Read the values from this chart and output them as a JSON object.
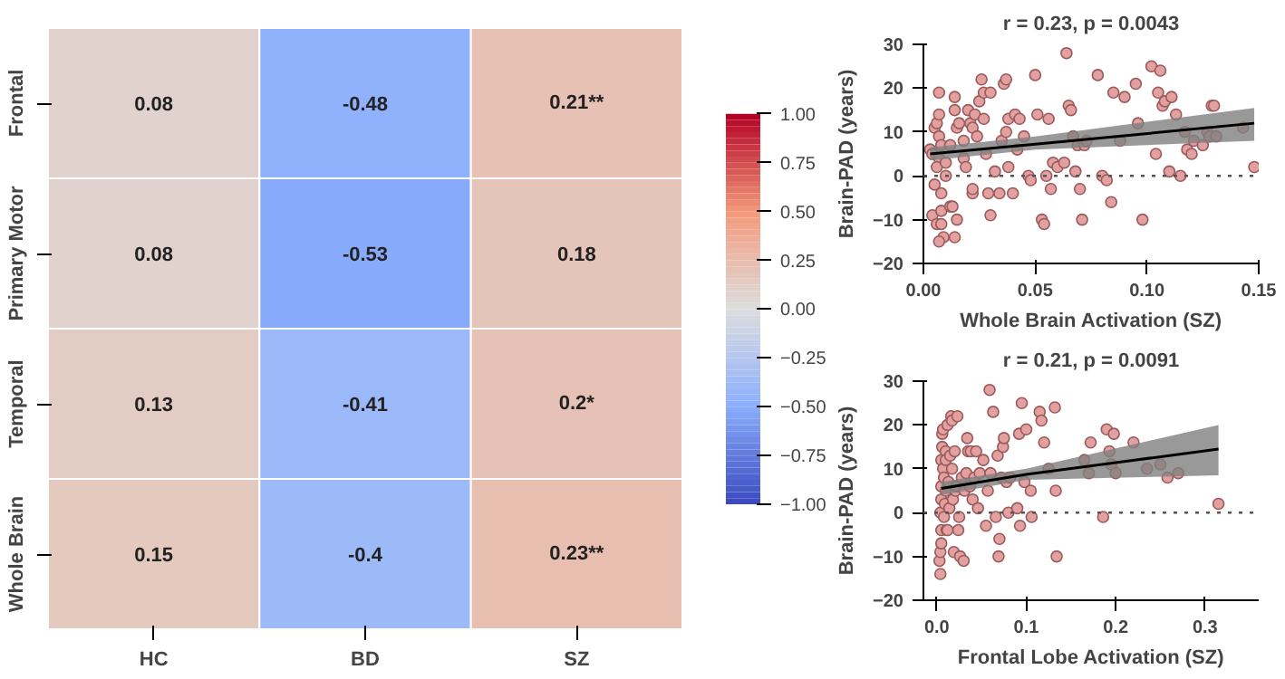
{
  "chart_data": [
    {
      "type": "heatmap",
      "categories": [
        "HC",
        "BD",
        "SZ"
      ],
      "y_categories": [
        "Frontal",
        "Primary Motor",
        "Temporal",
        "Whole Brain"
      ],
      "cells": [
        [
          0.08,
          -0.48,
          0.21
        ],
        [
          0.08,
          -0.53,
          0.18
        ],
        [
          0.13,
          -0.41,
          0.2
        ],
        [
          0.15,
          -0.4,
          0.23
        ]
      ],
      "cell_labels": [
        [
          "0.08",
          "-0.48",
          "0.21**"
        ],
        [
          "0.08",
          "-0.53",
          "0.18"
        ],
        [
          "0.13",
          "-0.41",
          "0.2*"
        ],
        [
          "0.15",
          "-0.4",
          "0.23**"
        ]
      ],
      "clim": [
        -1,
        1
      ],
      "cticks": [
        {
          "value": 1,
          "label": "1.00"
        },
        {
          "value": 0.75,
          "label": "0.75"
        },
        {
          "value": 0.5,
          "label": "0.50"
        },
        {
          "value": 0.25,
          "label": "0.25"
        },
        {
          "value": 0,
          "label": "0.00"
        },
        {
          "value": -0.25,
          "label": "−0.25"
        },
        {
          "value": -0.5,
          "label": "−0.50"
        },
        {
          "value": -0.75,
          "label": "−0.75"
        },
        {
          "value": -1,
          "label": "−1.00"
        }
      ]
    },
    {
      "type": "scatter",
      "title": "r = 0.23, p = 0.0043",
      "xlabel": "Whole Brain Activation (SZ)",
      "ylabel": "Brain-PAD (years)",
      "xlim": [
        0,
        0.15
      ],
      "ylim": [
        -20,
        30
      ],
      "xticks": [
        {
          "value": 0,
          "label": "0.00"
        },
        {
          "value": 0.05,
          "label": "0.05"
        },
        {
          "value": 0.1,
          "label": "0.10"
        },
        {
          "value": 0.15,
          "label": "0.15"
        }
      ],
      "yticks": [
        -20,
        -10,
        0,
        10,
        20,
        30
      ],
      "grid": false,
      "ref_lines": [
        {
          "axis": "y",
          "value": 0,
          "line_style": "dotted",
          "color": "#555555"
        }
      ],
      "series": [
        {
          "type": "scatter",
          "marker": "circle",
          "color": "#e3a0a0",
          "x": [
            0.003,
            0.004,
            0.005,
            0.005,
            0.004,
            0.006,
            0.007,
            0.006,
            0.007,
            0.007,
            0.008,
            0.007,
            0.008,
            0.008,
            0.009,
            0.007,
            0.008,
            0.006,
            0.01,
            0.01,
            0.012,
            0.013,
            0.014,
            0.015,
            0.012,
            0.014,
            0.014,
            0.015,
            0.016,
            0.018,
            0.018,
            0.019,
            0.02,
            0.021,
            0.022,
            0.022,
            0.022,
            0.023,
            0.024,
            0.025,
            0.026,
            0.027,
            0.027,
            0.028,
            0.029,
            0.03,
            0.03,
            0.032,
            0.034,
            0.035,
            0.036,
            0.037,
            0.037,
            0.038,
            0.038,
            0.04,
            0.041,
            0.042,
            0.043,
            0.045,
            0.047,
            0.048,
            0.05,
            0.051,
            0.053,
            0.054,
            0.055,
            0.056,
            0.057,
            0.058,
            0.06,
            0.063,
            0.064,
            0.065,
            0.066,
            0.067,
            0.068,
            0.069,
            0.07,
            0.071,
            0.072,
            0.073,
            0.078,
            0.08,
            0.082,
            0.084,
            0.085,
            0.088,
            0.09,
            0.095,
            0.096,
            0.098,
            0.102,
            0.104,
            0.105,
            0.106,
            0.107,
            0.108,
            0.11,
            0.111,
            0.113,
            0.115,
            0.117,
            0.118,
            0.12,
            0.121,
            0.125,
            0.127,
            0.128,
            0.129,
            0.13,
            0.131,
            0.143,
            0.148
          ],
          "values": [
            6,
            5,
            11,
            -2,
            -9,
            -11,
            19,
            12,
            14,
            9,
            7,
            4,
            -4,
            -8,
            -14,
            -15,
            -11,
            2,
            0,
            3,
            -7,
            -7,
            -14,
            -10,
            7,
            15,
            18,
            11,
            12,
            8,
            4,
            2,
            15,
            12,
            11,
            -4,
            -3,
            14,
            9,
            17,
            22,
            19,
            13,
            5,
            -4,
            -9,
            19,
            1,
            -4,
            8,
            21,
            22,
            10,
            2,
            13,
            -4,
            14,
            6,
            13,
            9,
            0,
            -1,
            23,
            14,
            -10,
            -11,
            0,
            13,
            -3,
            3,
            2,
            3,
            28,
            16,
            15,
            9,
            1,
            7,
            -3,
            -10,
            7,
            8,
            23,
            0,
            -1,
            -6,
            19,
            8,
            18,
            21,
            12,
            -10,
            25,
            5,
            19,
            24,
            16,
            17,
            1,
            18,
            14,
            0,
            10,
            6,
            5,
            8,
            7,
            10,
            9,
            16,
            16,
            9,
            11,
            2
          ]
        },
        {
          "type": "line",
          "color": "#000000",
          "x": [
            0.003,
            0.05,
            0.148
          ],
          "values": [
            5,
            7.2,
            12
          ],
          "lower": [
            3.5,
            6,
            8
          ],
          "upper": [
            6.5,
            9,
            15.5
          ]
        }
      ]
    },
    {
      "type": "scatter",
      "title": "r = 0.21, p = 0.0091",
      "xlabel": "Frontal Lobe Activation (SZ)",
      "ylabel": "Brain-PAD (years)",
      "xlim": [
        -0.015,
        0.36
      ],
      "ylim": [
        -20,
        30
      ],
      "xticks": [
        {
          "value": 0,
          "label": "0.0"
        },
        {
          "value": 0.1,
          "label": "0.1"
        },
        {
          "value": 0.2,
          "label": "0.2"
        },
        {
          "value": 0.3,
          "label": "0.3"
        }
      ],
      "yticks": [
        -20,
        -10,
        0,
        10,
        20,
        30
      ],
      "grid": false,
      "ref_lines": [
        {
          "axis": "y",
          "value": 0,
          "line_style": "dotted",
          "color": "#555555"
        }
      ],
      "series": [
        {
          "type": "scatter",
          "marker": "circle",
          "color": "#e3a0a0",
          "x": [
            0.003,
            0.004,
            0.004,
            0.005,
            0.005,
            0.004,
            0.005,
            0.005,
            0.005,
            0.006,
            0.006,
            0.007,
            0.007,
            0.008,
            0.008,
            0.009,
            0.01,
            0.01,
            0.01,
            0.011,
            0.012,
            0.012,
            0.013,
            0.014,
            0.015,
            0.016,
            0.017,
            0.017,
            0.018,
            0.019,
            0.02,
            0.021,
            0.022,
            0.023,
            0.024,
            0.025,
            0.026,
            0.028,
            0.03,
            0.031,
            0.033,
            0.034,
            0.035,
            0.037,
            0.038,
            0.04,
            0.042,
            0.044,
            0.046,
            0.048,
            0.052,
            0.055,
            0.057,
            0.059,
            0.06,
            0.063,
            0.066,
            0.068,
            0.069,
            0.07,
            0.072,
            0.074,
            0.075,
            0.078,
            0.08,
            0.082,
            0.09,
            0.092,
            0.093,
            0.095,
            0.098,
            0.1,
            0.105,
            0.106,
            0.115,
            0.117,
            0.12,
            0.125,
            0.132,
            0.133,
            0.134,
            0.165,
            0.17,
            0.172,
            0.186,
            0.19,
            0.193,
            0.195,
            0.198,
            0.2,
            0.22,
            0.235,
            0.25,
            0.258,
            0.27,
            0.315
          ],
          "values": [
            -11,
            -14,
            -9,
            -7,
            -4,
            0,
            3,
            6,
            12,
            15,
            18,
            19,
            10,
            8,
            -1,
            2,
            14,
            12,
            5,
            -4,
            20,
            -4,
            7,
            1,
            13,
            22,
            21,
            10,
            3,
            -9,
            14,
            5,
            6,
            22,
            -4,
            -1,
            -10,
            8,
            -11,
            5,
            9,
            17,
            14,
            6,
            14,
            3,
            8,
            14,
            1,
            9,
            12,
            -3,
            5,
            28,
            9,
            23,
            -1,
            13,
            -10,
            -6,
            8,
            15,
            17,
            7,
            0,
            8,
            1,
            18,
            -3,
            25,
            7,
            19,
            5,
            -1,
            23,
            21,
            16,
            10,
            24,
            5,
            -10,
            12,
            9,
            16,
            -1,
            19,
            14,
            11,
            18,
            9,
            16,
            10,
            11,
            8,
            9,
            2
          ]
        },
        {
          "type": "line",
          "color": "#000000",
          "x": [
            0.005,
            0.1,
            0.315
          ],
          "values": [
            5.5,
            8.7,
            14.5
          ],
          "lower": [
            4,
            7.5,
            8.5
          ],
          "upper": [
            7,
            10,
            20
          ]
        }
      ]
    }
  ]
}
